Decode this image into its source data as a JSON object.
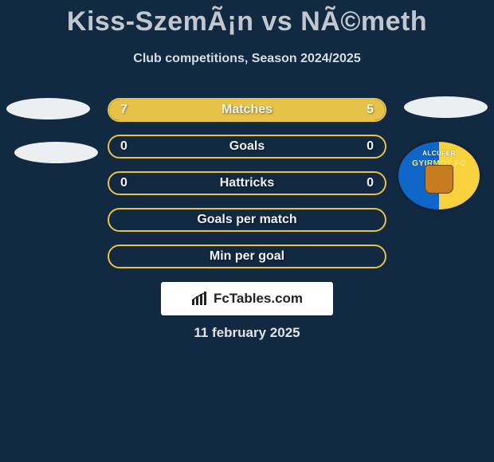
{
  "colors": {
    "background": "#122942",
    "pill_border": "#e6c24a",
    "pill_fill": "#e6c24a",
    "text_muted": "#c0c7cf",
    "text_light": "#eef2f6",
    "brand_bg": "#ffffff",
    "crest_left": "#0f66c7",
    "crest_right": "#f7d23e"
  },
  "title": "Kiss-SzemÃ¡n vs NÃ©meth",
  "subtitle": "Club competitions, Season 2024/2025",
  "brand": "FcTables.com",
  "date": "11 february 2025",
  "rows": [
    {
      "label": "Matches",
      "left": "7",
      "right": "5",
      "fill_pct": 100
    },
    {
      "label": "Goals",
      "left": "0",
      "right": "0",
      "fill_pct": 0
    },
    {
      "label": "Hattricks",
      "left": "0",
      "right": "0",
      "fill_pct": 0
    },
    {
      "label": "Goals per match",
      "left": "",
      "right": "",
      "fill_pct": 0
    },
    {
      "label": "Min per goal",
      "left": "",
      "right": "",
      "fill_pct": 0
    }
  ],
  "crest": {
    "top_text": "ALCUFER",
    "mid_text": "GYIRMÓT FC"
  }
}
